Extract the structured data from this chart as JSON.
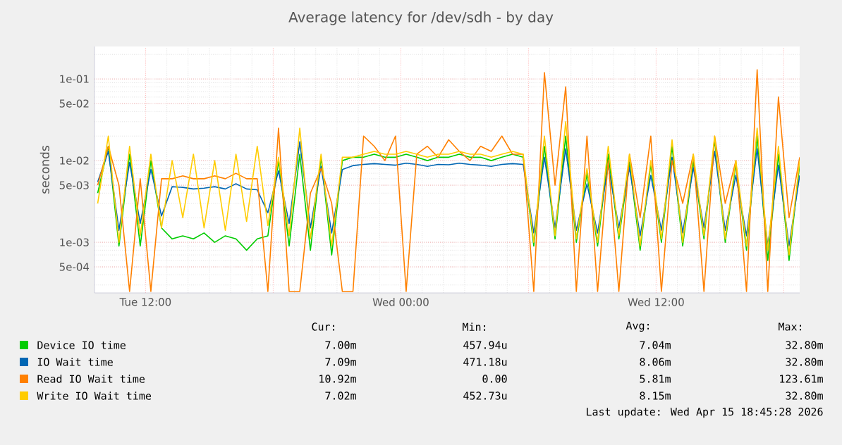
{
  "chart_data": {
    "type": "line",
    "title": "Average latency for /dev/sdh - by day",
    "ylabel": "seconds",
    "log": true,
    "grid": true,
    "legend": "bottom",
    "xlim": [
      "2026-04-14T09:36",
      "2026-04-15T18:45"
    ],
    "ylim": [
      0.00024,
      0.25
    ],
    "xticks": [
      {
        "value": "2026-04-14T12:00",
        "label": "Tue 12:00"
      },
      {
        "value": "2026-04-14T18:00",
        "label": null
      },
      {
        "value": "2026-04-15T00:00",
        "label": "Wed 00:00"
      },
      {
        "value": "2026-04-15T06:00",
        "label": null
      },
      {
        "value": "2026-04-15T12:00",
        "label": "Wed 12:00"
      },
      {
        "value": "2026-04-15T18:00",
        "label": null
      }
    ],
    "yticks": [
      {
        "value": 0.1,
        "label": "1e-01"
      },
      {
        "value": 0.05,
        "label": "5e-02"
      },
      {
        "value": 0.01,
        "label": "1e-02"
      },
      {
        "value": 0.005,
        "label": "5e-03"
      },
      {
        "value": 0.001,
        "label": "1e-03"
      },
      {
        "value": 0.0005,
        "label": "5e-04"
      }
    ],
    "x": [
      "2026-04-14T09:45",
      "2026-04-14T10:15",
      "2026-04-14T10:45",
      "2026-04-14T11:15",
      "2026-04-14T11:45",
      "2026-04-14T12:15",
      "2026-04-14T12:45",
      "2026-04-14T13:15",
      "2026-04-14T13:45",
      "2026-04-14T14:15",
      "2026-04-14T14:45",
      "2026-04-14T15:15",
      "2026-04-14T15:45",
      "2026-04-14T16:15",
      "2026-04-14T16:45",
      "2026-04-14T17:15",
      "2026-04-14T17:45",
      "2026-04-14T18:15",
      "2026-04-14T18:45",
      "2026-04-14T19:15",
      "2026-04-14T19:45",
      "2026-04-14T20:15",
      "2026-04-14T20:45",
      "2026-04-14T21:15",
      "2026-04-14T21:45",
      "2026-04-14T22:15",
      "2026-04-14T22:45",
      "2026-04-14T23:15",
      "2026-04-14T23:45",
      "2026-04-15T00:15",
      "2026-04-15T00:45",
      "2026-04-15T01:15",
      "2026-04-15T01:45",
      "2026-04-15T02:15",
      "2026-04-15T02:45",
      "2026-04-15T03:15",
      "2026-04-15T03:45",
      "2026-04-15T04:15",
      "2026-04-15T04:45",
      "2026-04-15T05:15",
      "2026-04-15T05:45",
      "2026-04-15T06:15",
      "2026-04-15T06:45",
      "2026-04-15T07:15",
      "2026-04-15T07:45",
      "2026-04-15T08:15",
      "2026-04-15T08:45",
      "2026-04-15T09:15",
      "2026-04-15T09:45",
      "2026-04-15T10:15",
      "2026-04-15T10:45",
      "2026-04-15T11:15",
      "2026-04-15T11:45",
      "2026-04-15T12:15",
      "2026-04-15T12:45",
      "2026-04-15T13:15",
      "2026-04-15T13:45",
      "2026-04-15T14:15",
      "2026-04-15T14:45",
      "2026-04-15T15:15",
      "2026-04-15T15:45",
      "2026-04-15T16:15",
      "2026-04-15T16:45",
      "2026-04-15T17:15",
      "2026-04-15T17:45",
      "2026-04-15T18:15",
      "2026-04-15T18:45"
    ],
    "series": [
      {
        "name": "Device IO time",
        "color": "#00cc00",
        "values": [
          0.004,
          0.015,
          0.0009,
          0.012,
          0.0009,
          0.01,
          0.0015,
          0.0011,
          0.0012,
          0.0011,
          0.0013,
          0.001,
          0.0012,
          0.0011,
          0.0008,
          0.0011,
          0.0012,
          0.01,
          0.0009,
          0.012,
          0.0008,
          0.011,
          0.0007,
          0.01,
          0.011,
          0.011,
          0.012,
          0.011,
          0.011,
          0.012,
          0.011,
          0.01,
          0.011,
          0.011,
          0.012,
          0.011,
          0.011,
          0.01,
          0.011,
          0.012,
          0.011,
          0.0009,
          0.015,
          0.0011,
          0.02,
          0.001,
          0.007,
          0.0009,
          0.012,
          0.0011,
          0.0096,
          0.0008,
          0.009,
          0.001,
          0.015,
          0.0009,
          0.0097,
          0.0011,
          0.018,
          0.001,
          0.009,
          0.0008,
          0.02,
          0.0006,
          0.012,
          0.0006,
          0.009
        ]
      },
      {
        "name": "IO Wait time",
        "color": "#0066b3",
        "values": [
          0.0055,
          0.013,
          0.0014,
          0.0095,
          0.0017,
          0.0078,
          0.0021,
          0.0048,
          0.0047,
          0.0045,
          0.0046,
          0.0048,
          0.0045,
          0.0052,
          0.0045,
          0.0044,
          0.0023,
          0.0075,
          0.0017,
          0.017,
          0.0015,
          0.0085,
          0.0013,
          0.0078,
          0.0087,
          0.009,
          0.0092,
          0.009,
          0.0088,
          0.0093,
          0.009,
          0.0085,
          0.009,
          0.0089,
          0.0093,
          0.009,
          0.0088,
          0.0085,
          0.009,
          0.0092,
          0.009,
          0.0013,
          0.011,
          0.0015,
          0.014,
          0.0014,
          0.0052,
          0.0013,
          0.0088,
          0.0015,
          0.0082,
          0.0012,
          0.0066,
          0.0014,
          0.011,
          0.0013,
          0.0082,
          0.0015,
          0.013,
          0.0014,
          0.0066,
          0.0012,
          0.014,
          0.0009,
          0.0088,
          0.0009,
          0.0066
        ]
      },
      {
        "name": "Read IO Wait time",
        "color": "#ff8000",
        "values": [
          0.005,
          0.015,
          0.005,
          0.00025,
          0.006,
          0.00025,
          0.006,
          0.006,
          0.0065,
          0.006,
          0.006,
          0.0065,
          0.006,
          0.007,
          0.006,
          0.006,
          0.00025,
          0.025,
          0.00025,
          0.00025,
          0.004,
          0.008,
          0.003,
          0.00025,
          0.00025,
          0.02,
          0.015,
          0.01,
          0.02,
          0.00025,
          0.012,
          0.015,
          0.011,
          0.018,
          0.013,
          0.01,
          0.015,
          0.013,
          0.02,
          0.012,
          0.012,
          0.00025,
          0.12,
          0.005,
          0.08,
          0.00025,
          0.02,
          0.00025,
          0.01,
          0.00025,
          0.012,
          0.002,
          0.02,
          0.00025,
          0.01,
          0.003,
          0.012,
          0.00025,
          0.02,
          0.003,
          0.01,
          0.00025,
          0.13,
          0.00025,
          0.06,
          0.002,
          0.011
        ]
      },
      {
        "name": "Write IO Wait time",
        "color": "#ffcc00",
        "values": [
          0.003,
          0.02,
          0.001,
          0.015,
          0.0012,
          0.012,
          0.0015,
          0.01,
          0.002,
          0.012,
          0.0015,
          0.01,
          0.0014,
          0.012,
          0.0018,
          0.015,
          0.0016,
          0.011,
          0.0012,
          0.025,
          0.0011,
          0.012,
          0.0009,
          0.011,
          0.011,
          0.012,
          0.013,
          0.012,
          0.012,
          0.013,
          0.012,
          0.011,
          0.012,
          0.012,
          0.013,
          0.012,
          0.012,
          0.011,
          0.012,
          0.013,
          0.012,
          0.001,
          0.02,
          0.0012,
          0.03,
          0.0011,
          0.008,
          0.001,
          0.015,
          0.0012,
          0.012,
          0.0009,
          0.01,
          0.0011,
          0.018,
          0.001,
          0.012,
          0.0012,
          0.02,
          0.0011,
          0.01,
          0.0009,
          0.025,
          0.0008,
          0.015,
          0.0007,
          0.01
        ]
      }
    ],
    "annotations": [
      "Cur:",
      "Min:",
      "Avg:",
      "Max:",
      "7.00m",
      "457.94u",
      "7.04m",
      "32.80m",
      "7.09m",
      "471.18u",
      "8.06m",
      "32.80m",
      "10.92m",
      "0.00",
      "5.81m",
      "123.61m",
      "7.02m",
      "452.73u",
      "8.15m",
      "32.80m",
      "Last update: Wed Apr 15 18:45:28 2026"
    ]
  }
}
